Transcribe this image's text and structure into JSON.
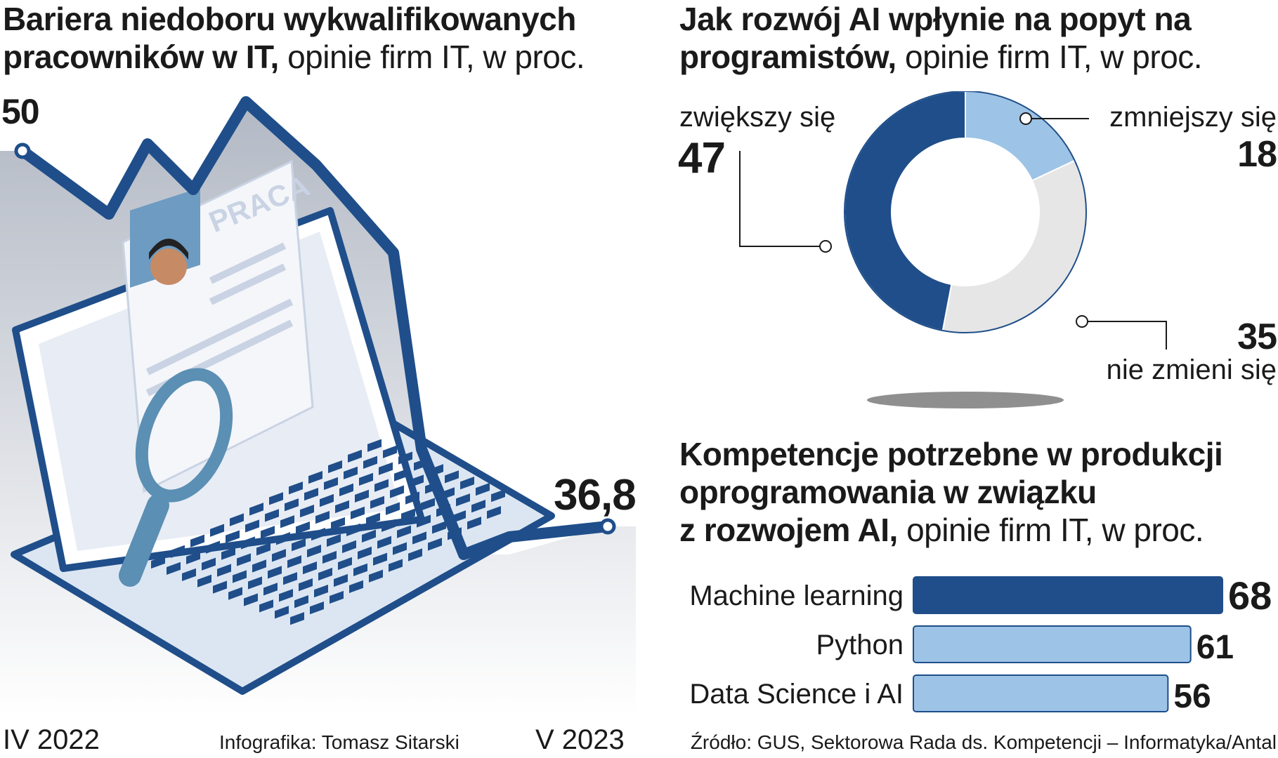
{
  "left_panel": {
    "title_bold": "Bariera niedoboru wykwalifikowanych pracowników w IT,",
    "title_light": "opinie firm IT, w proc.",
    "start_label": "IV 2022",
    "end_label": "V 2023",
    "credit": "Infografika: Tomasz Sitarski",
    "illustration_text": "PRACA"
  },
  "right_top": {
    "title_bold": "Jak rozwój AI wpłynie na popyt na programistów,",
    "title_light": "opinie firm IT, w proc."
  },
  "right_bottom": {
    "title_line1": "Kompetencje potrzebne w produkcji",
    "title_line2": "oprogramowania w związku",
    "title_line3_bold": "z rozwojem AI,",
    "title_light": "opinie firm IT, w proc."
  },
  "source": "Źródło: GUS, Sektorowa Rada ds. Kompetencji – Informatyka/Antal",
  "colors": {
    "dark_blue": "#1f4e8a",
    "light_blue": "#9dc3e6",
    "light_gray": "#e6e6e6",
    "text": "#1a1a1a"
  },
  "chart_data": [
    {
      "type": "line",
      "x": [
        "IV 2022",
        "V 2023"
      ],
      "values": [
        50,
        36.8
      ],
      "value_labels": [
        "50",
        "36,8"
      ]
    },
    {
      "type": "pie",
      "categories": [
        "zwiększy się",
        "zmniejszy się",
        "nie zmieni się"
      ],
      "values": [
        47,
        18,
        35
      ],
      "value_labels": [
        "47",
        "18",
        "35"
      ]
    },
    {
      "type": "bar",
      "orientation": "horizontal",
      "categories": [
        "Machine learning",
        "Python",
        "Data Science i AI"
      ],
      "values": [
        68,
        61,
        56
      ],
      "value_labels": [
        "68",
        "61",
        "56"
      ]
    }
  ]
}
